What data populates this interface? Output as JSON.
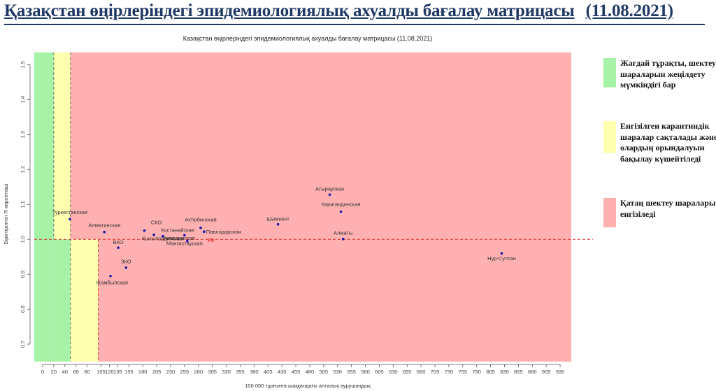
{
  "slide": {
    "title": "Қазақстан өңірлеріндегі эпидемиологиялық ахуалды бағалау матрицасы",
    "date": "(11.08.2021)"
  },
  "legend": [
    {
      "color": "#a6f2a6",
      "text": "Жағдай тұрақты, шектеу шараларын жеңілдету мүмкіндігі бар"
    },
    {
      "color": "#ffffb0",
      "text": "Енгізілген карантиндік шаралар сақталады және олардың орындалуын бақылау күшейтіледі"
    },
    {
      "color": "#ffb0b0",
      "text": "Қатаң шектеу шаралары енгізіледі"
    }
  ],
  "chart_data": {
    "type": "scatter",
    "title": "Казақстан өңірлеріндегі эпидемиологиялық ахуалды бағалау матрицасы (11.08.2021)",
    "xlabel": "100 000 тұрғынға шаққандағы апталық аурушаңдық",
    "ylabel": "Біріктірілген R көрсеткіші",
    "xlim": [
      -15,
      950
    ],
    "ylim": [
      0.65,
      1.535
    ],
    "xticks": [
      0,
      20,
      40,
      60,
      80,
      105,
      120,
      135,
      155,
      180,
      205,
      230,
      255,
      280,
      305,
      330,
      355,
      380,
      405,
      430,
      455,
      480,
      505,
      530,
      555,
      580,
      605,
      630,
      655,
      680,
      705,
      730,
      755,
      780,
      805,
      830,
      855,
      880,
      905,
      930
    ],
    "yticks": [
      0.7,
      0.8,
      0.9,
      1.0,
      1.1,
      1.2,
      1.3,
      1.4,
      1.5
    ],
    "zones": [
      {
        "x_from": -15,
        "x_to": 20,
        "color": "#a6f2a6"
      },
      {
        "x_from": 20,
        "x_to": 50,
        "y_from": 0.65,
        "y_to": 1.0,
        "color": "#a6f2a6"
      },
      {
        "x_from": 20,
        "x_to": 50,
        "y_from": 1.0,
        "y_to": 1.535,
        "color": "#ffffb0"
      },
      {
        "x_from": 50,
        "x_to": 100,
        "y_from": 0.65,
        "y_to": 1.0,
        "color": "#ffffb0"
      },
      {
        "x_from": 50,
        "x_to": 100,
        "y_from": 1.0,
        "y_to": 1.535,
        "color": "#ffb0b0"
      },
      {
        "x_from": 100,
        "x_to": 950,
        "color": "#ffb0b0"
      }
    ],
    "ref_lines": [
      {
        "axis": "y",
        "value": 1.0
      },
      {
        "axis": "x",
        "value": 20,
        "y_from": 1.0,
        "y_to": 1.535
      },
      {
        "axis": "x",
        "value": 50
      },
      {
        "axis": "x",
        "value": 100,
        "y_from": 0.65,
        "y_to": 1.0
      }
    ],
    "points": [
      {
        "label": "Туркестанская",
        "x": 49,
        "y": 1.058
      },
      {
        "label": "Алматинская",
        "x": 111,
        "y": 1.021
      },
      {
        "label": "СКО",
        "x": 183,
        "y": 1.025
      },
      {
        "label": "Костанайская",
        "x": 200,
        "y": 1.013
      },
      {
        "label": "Кызылординская",
        "x": 216,
        "y": 1.009
      },
      {
        "label": "ВКО",
        "x": 136,
        "y": 0.976
      },
      {
        "label": "Акмолинская",
        "x": 255,
        "y": 1.012
      },
      {
        "label": "Мангистауская",
        "x": 260,
        "y": 0.995
      },
      {
        "label": "Актюбинская",
        "x": 284,
        "y": 1.033
      },
      {
        "label": "Павлодарская",
        "x": 290,
        "y": 1.022
      },
      {
        "label": "РК",
        "x": 290,
        "y": 1.0
      },
      {
        "label": "ЗКО",
        "x": 150,
        "y": 0.919
      },
      {
        "label": "Жамбылская",
        "x": 122,
        "y": 0.895
      },
      {
        "label": "Шымкент",
        "x": 423,
        "y": 1.043
      },
      {
        "label": "Атырауская",
        "x": 516,
        "y": 1.128
      },
      {
        "label": "Карагандинская",
        "x": 536,
        "y": 1.079
      },
      {
        "label": "Алматы",
        "x": 540,
        "y": 1.001
      },
      {
        "label": "Нур-Султан",
        "x": 825,
        "y": 0.96
      }
    ]
  }
}
